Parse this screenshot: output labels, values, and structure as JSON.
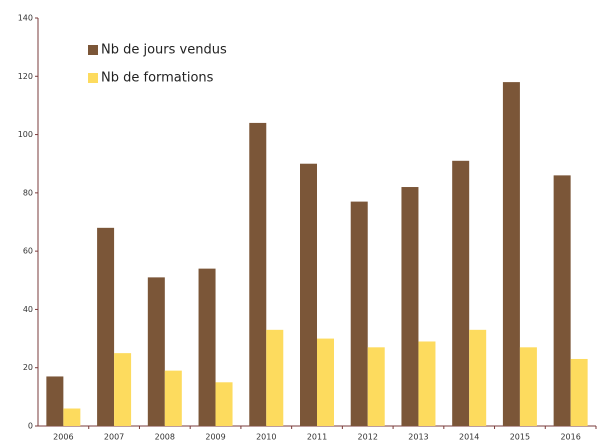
{
  "chart_data": {
    "type": "bar",
    "categories": [
      "2006",
      "2007",
      "2008",
      "2009",
      "2010",
      "2011",
      "2012",
      "2013",
      "2014",
      "2015",
      "2016"
    ],
    "series": [
      {
        "name": "Nb de jours vendus",
        "color": "#7b5638",
        "values": [
          17,
          68,
          51,
          54,
          104,
          90,
          77,
          82,
          91,
          118,
          86
        ]
      },
      {
        "name": "Nb de formations",
        "color": "#fddb5e",
        "values": [
          6,
          25,
          19,
          15,
          33,
          30,
          27,
          29,
          33,
          27,
          23
        ]
      }
    ],
    "ylim": [
      0,
      140
    ],
    "yticks": [
      0,
      20,
      40,
      60,
      80,
      100,
      120,
      140
    ],
    "grid": false,
    "legend": "top-left"
  }
}
